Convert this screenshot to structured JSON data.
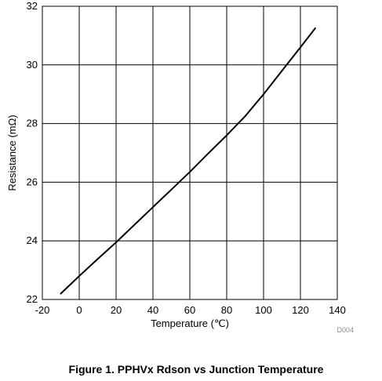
{
  "chart_data": {
    "type": "line",
    "title": "",
    "xlabel": "Temperature (℃)",
    "ylabel": "Resistance (mΩ)",
    "xlim": [
      -20,
      140
    ],
    "ylim": [
      22,
      32
    ],
    "x_ticks": [
      "-20",
      "0",
      "20",
      "40",
      "60",
      "80",
      "100",
      "120",
      "140"
    ],
    "y_ticks": [
      "22",
      "24",
      "26",
      "28",
      "30",
      "32"
    ],
    "x_tick_values": [
      -20,
      0,
      20,
      40,
      60,
      80,
      100,
      120,
      140
    ],
    "y_tick_values": [
      22,
      24,
      26,
      28,
      30,
      32
    ],
    "grid": true,
    "series": [
      {
        "x": [
          -10,
          0,
          10,
          20,
          30,
          40,
          50,
          60,
          70,
          80,
          90,
          100,
          110,
          120,
          128
        ],
        "y": [
          22.2,
          22.8,
          23.38,
          23.95,
          24.55,
          25.15,
          25.75,
          26.35,
          26.98,
          27.6,
          28.25,
          29.0,
          29.8,
          30.6,
          31.25
        ]
      }
    ],
    "line_color": "#000000",
    "figure_id": "D004"
  },
  "caption": "Figure 1. PPHVx Rdson vs Junction Temperature"
}
